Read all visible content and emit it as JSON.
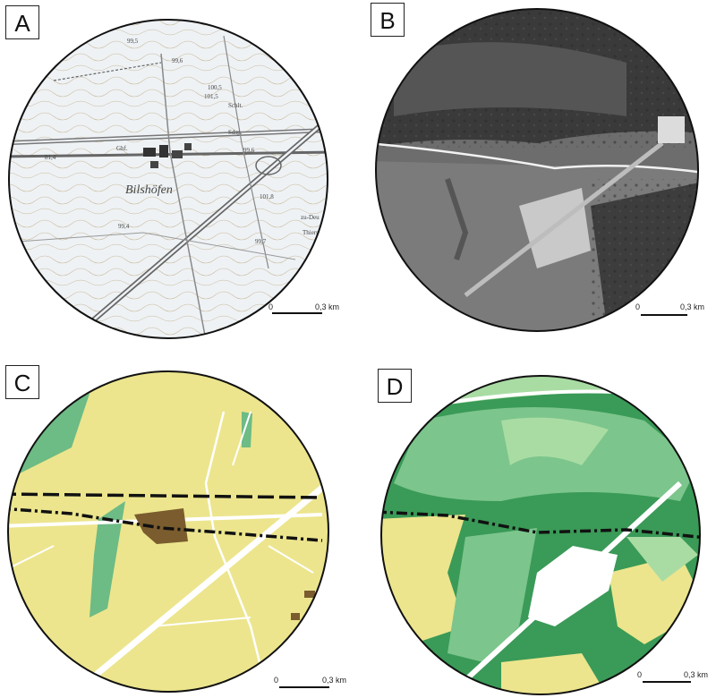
{
  "panels": [
    {
      "label": "A",
      "type": "topographic-map",
      "place_name": "Bilshöfen",
      "map_labels": [
        "99,8",
        "99,5",
        "101,5",
        "100,5",
        "99,6",
        "Schlt.",
        "Ghf.",
        "Sdsp.",
        "99,4",
        "101,8",
        "zu-Deu",
        "Thierst",
        "99,7",
        "99,6",
        "81,4"
      ],
      "scale": {
        "zero": "0",
        "distance": "0,3 km"
      }
    },
    {
      "label": "B",
      "type": "aerial-image",
      "scale": {
        "zero": "0",
        "distance": "0,3 km"
      }
    },
    {
      "label": "C",
      "type": "land-cover-map",
      "scale": {
        "zero": "0",
        "distance": "0,3 km"
      }
    },
    {
      "label": "D",
      "type": "vegetation-map",
      "scale": {
        "zero": "0",
        "distance": "0,3 km"
      }
    }
  ],
  "colors": {
    "outline": "#111111",
    "topo_bg": "#eef2f5",
    "aerial_dark": "#3a3a3a",
    "aerial_field": "#7b7b7b",
    "landcover_yellow": "#ece58d",
    "landcover_green": "#6dbb85",
    "settlement_brown": "#7a5c2e",
    "veg_dark_green": "#3a9a57",
    "veg_mid_green": "#7cc58c",
    "veg_light_green": "#a9dca3"
  }
}
